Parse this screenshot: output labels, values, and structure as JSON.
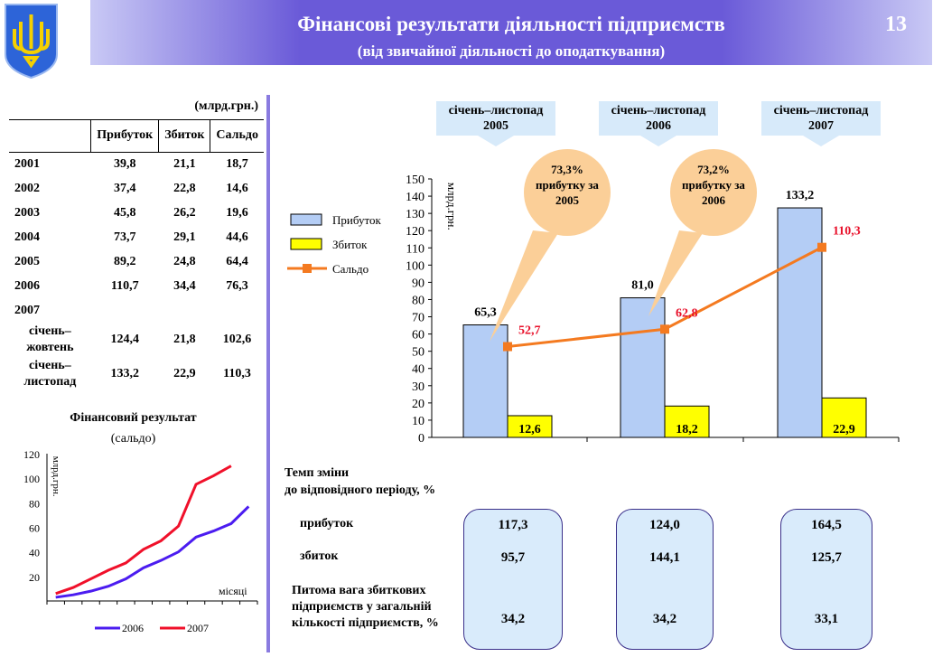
{
  "header": {
    "title": "Фінансові результати діяльності підприємств",
    "subtitle": "(від звичайної діяльності до оподаткування)",
    "page_number": "13"
  },
  "table": {
    "unit": "(млрд.грн.)",
    "columns": [
      "Прибуток",
      "Збиток",
      "Сальдо"
    ],
    "rows": [
      {
        "label": "2001",
        "values": [
          "39,8",
          "21,1",
          "18,7"
        ]
      },
      {
        "label": "2002",
        "values": [
          "37,4",
          "22,8",
          "14,6"
        ]
      },
      {
        "label": "2003",
        "values": [
          "45,8",
          "26,2",
          "19,6"
        ]
      },
      {
        "label": "2004",
        "values": [
          "73,7",
          "29,1",
          "44,6"
        ]
      },
      {
        "label": "2005",
        "values": [
          "89,2",
          "24,8",
          "64,4"
        ]
      },
      {
        "label": "2006",
        "values": [
          "110,7",
          "34,4",
          "76,3"
        ]
      },
      {
        "label": "2007",
        "values": [
          "",
          "",
          ""
        ]
      },
      {
        "label": "січень–жовтень",
        "values": [
          "124,4",
          "21,8",
          "102,6"
        ]
      },
      {
        "label": "січень–листопад",
        "values": [
          "133,2",
          "22,9",
          "110,3"
        ]
      }
    ]
  },
  "periods": [
    "січень–листопад 2005",
    "січень–листопад 2006",
    "січень–листопад 2007"
  ],
  "callouts": [
    "73,3% прибутку за 2005",
    "73,2% прибутку за 2006"
  ],
  "change": {
    "title_line1": "Темп зміни",
    "title_line2": "до відповідного періоду, %",
    "profit_label": "прибуток",
    "loss_label": "збиток",
    "share_label_1": "Питома вага збиткових",
    "share_label_2": "підприємств у загальній",
    "share_label_3": "кількості підприємств, %",
    "profit": [
      "117,3",
      "124,0",
      "164,5"
    ],
    "loss": [
      "95,7",
      "144,1",
      "125,7"
    ],
    "share": [
      "34,2",
      "34,2",
      "33,1"
    ]
  },
  "chart_data": [
    {
      "type": "bar",
      "categories": [
        "січень–листопад 2005",
        "січень–листопад 2006",
        "січень–листопад 2007"
      ],
      "ylabel": "млрд.грн.",
      "ylim": [
        0,
        150
      ],
      "yticks": [
        0,
        10,
        20,
        30,
        40,
        50,
        60,
        70,
        80,
        90,
        100,
        110,
        120,
        130,
        140,
        150
      ],
      "legend": "left",
      "series": [
        {
          "name": "Прибуток",
          "type": "bar",
          "values": [
            65.3,
            81.0,
            133.2
          ],
          "labels": [
            "65,3",
            "81,0",
            "133,2"
          ],
          "color": "#b4cdf5"
        },
        {
          "name": "Збиток",
          "type": "bar",
          "values": [
            12.6,
            18.2,
            22.9
          ],
          "labels": [
            "12,6",
            "18,2",
            "22,9"
          ],
          "color": "#ffff00"
        },
        {
          "name": "Сальдо",
          "type": "line",
          "values": [
            52.7,
            62.8,
            110.3
          ],
          "labels": [
            "52,7",
            "62,8",
            "110,3"
          ],
          "color": "#f47a20"
        }
      ]
    },
    {
      "type": "line",
      "title": "Фінансовий  результат",
      "subtitle": "(сальдо)",
      "ylabel": "млрд.грн.",
      "xlabel": "місяці",
      "ylim": [
        0,
        120
      ],
      "yticks": [
        20,
        40,
        60,
        80,
        100,
        120
      ],
      "legend": "bottom",
      "series": [
        {
          "name": "2006",
          "color": "#4b1cf0",
          "values": [
            3,
            5,
            8,
            12,
            18,
            27,
            33,
            40,
            52,
            57,
            63,
            77
          ]
        },
        {
          "name": "2007",
          "color": "#f0102a",
          "values": [
            6,
            11,
            18,
            25,
            31,
            42,
            49,
            61,
            95,
            102,
            110
          ]
        }
      ]
    }
  ]
}
